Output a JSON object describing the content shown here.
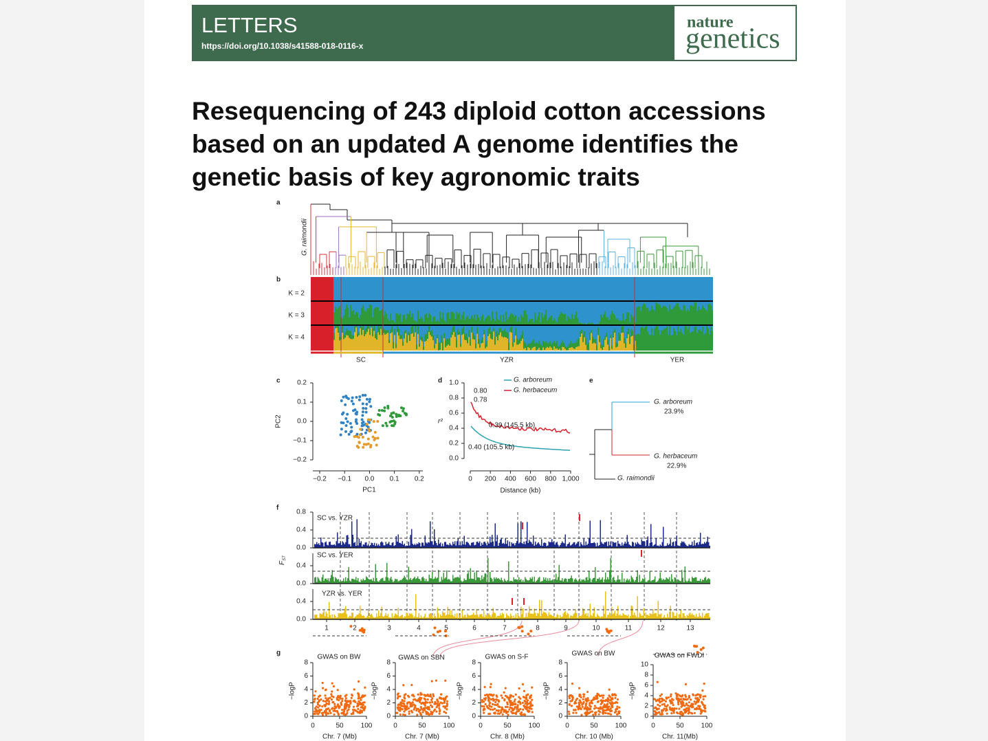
{
  "header": {
    "section": "LETTERS",
    "doi": "https://doi.org/10.1038/s41588-018-0116-x",
    "logo": [
      "nature",
      "genetics"
    ]
  },
  "title": [
    "Resequencing of 243 diploid cotton accessions",
    "based on an updated A genome identifies the",
    "genetic basis of key agronomic traits"
  ],
  "figure": {
    "panel_a": {
      "label": "a",
      "outgroup": "G. raimondii"
    },
    "panel_b": {
      "label": "b",
      "rows": [
        "K = 2",
        "K = 3",
        "K = 4"
      ],
      "groups": [
        "SC",
        "YZR",
        "YER"
      ]
    },
    "panel_c": {
      "label": "c",
      "xticks": [
        "−0.2",
        "−0.1",
        "0.0",
        "0.1",
        "0.2"
      ],
      "yticks": [
        "0.2",
        "0.1",
        "0.0",
        "−0.1",
        "−0.2"
      ],
      "xlabel": "PC1",
      "ylabel": "PC2"
    },
    "panel_d": {
      "label": "d",
      "yticks": [
        "1.0",
        "0.8",
        "0.6",
        "0.4",
        "0.2",
        "0.0"
      ],
      "xticks": [
        "0",
        "200",
        "400",
        "600",
        "800",
        "1,000"
      ],
      "xlabel": "Distance (kb)",
      "ylabel": "r²",
      "legend": [
        "G. arboreum",
        "G. herbaceum"
      ],
      "annotations": [
        "0.80",
        "0.78",
        "0.39 (145.5 kb)",
        "0.40 (105.5 kb)"
      ]
    },
    "panel_e": {
      "label": "e",
      "taxa": [
        {
          "name": "G. arboreum",
          "value": "23.9%"
        },
        {
          "name": "G. herbaceum",
          "value": "22.9%"
        },
        {
          "name": "G. raimondii"
        }
      ]
    },
    "panel_f": {
      "label": "f",
      "ylabel": {
        "symbol": "F",
        "subscript": "ST"
      },
      "comparisons": [
        {
          "name": "SC vs. YZR",
          "yticks": [
            "0.8",
            "0.4",
            "0.0"
          ]
        },
        {
          "name": "SC vs. YER",
          "yticks": [
            "0.4",
            "0.0"
          ]
        },
        {
          "name": "YZR vs. YER",
          "yticks": [
            "0.4",
            "0.0"
          ]
        }
      ],
      "chromosomes": [
        "1",
        "2",
        "3",
        "4",
        "5",
        "6",
        "7",
        "8",
        "9",
        "10",
        "11",
        "12",
        "13"
      ]
    },
    "panel_g": {
      "label": "g",
      "ylabel": "−logP",
      "xticks": [
        "0",
        "50",
        "100"
      ],
      "plots": [
        {
          "title": "GWAS on BW",
          "xlabel": "Chr. 7 (Mb)",
          "yticks": [
            "0",
            "2",
            "4",
            "6",
            "8"
          ]
        },
        {
          "title": "GWAS on SBN",
          "xlabel": "Chr. 7 (Mb)",
          "yticks": [
            "0",
            "2",
            "4",
            "6",
            "8"
          ]
        },
        {
          "title": "GWAS on S-F",
          "xlabel": "Chr. 8 (Mb)",
          "yticks": [
            "0",
            "2",
            "4",
            "6",
            "8"
          ]
        },
        {
          "title": "GWAS on BW",
          "xlabel": "Chr. 10 (Mb)",
          "yticks": [
            "0",
            "2",
            "4",
            "6",
            "8"
          ]
        },
        {
          "title": "GWAS on FWDI",
          "xlabel": "Chr. 11(Mb)",
          "yticks": [
            "0",
            "2",
            "4",
            "6",
            "8",
            "10"
          ]
        }
      ]
    }
  }
}
